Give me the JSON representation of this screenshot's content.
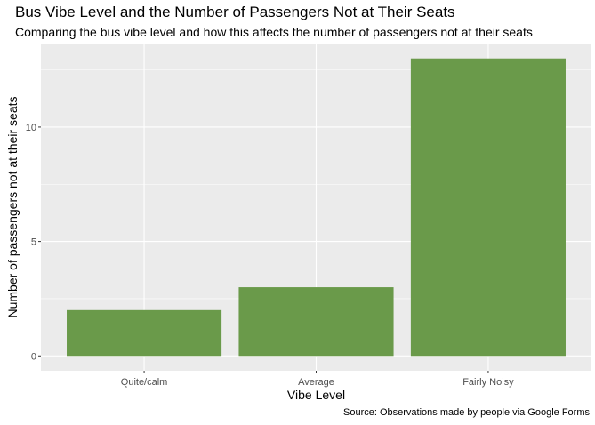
{
  "title": "Bus Vibe Level and the Number of Passengers Not at Their Seats",
  "subtitle": "Comparing the bus vibe level and how this affects the number of passengers not at their seats",
  "caption": "Source: Observations made by people via Google Forms",
  "colors": {
    "bar": "#6a9a4a",
    "panel": "#ebebeb",
    "grid_major": "#ffffff"
  },
  "chart_data": {
    "type": "bar",
    "categories": [
      "Quite/calm",
      "Average",
      "Fairly Noisy"
    ],
    "values": [
      2,
      3,
      13
    ],
    "xlabel": "Vibe Level",
    "ylabel": "Number of passengers not at their seats",
    "ylim": [
      -0.65,
      13.65
    ],
    "yticks": [
      0,
      5,
      10
    ],
    "grid": true,
    "legend": "none"
  }
}
